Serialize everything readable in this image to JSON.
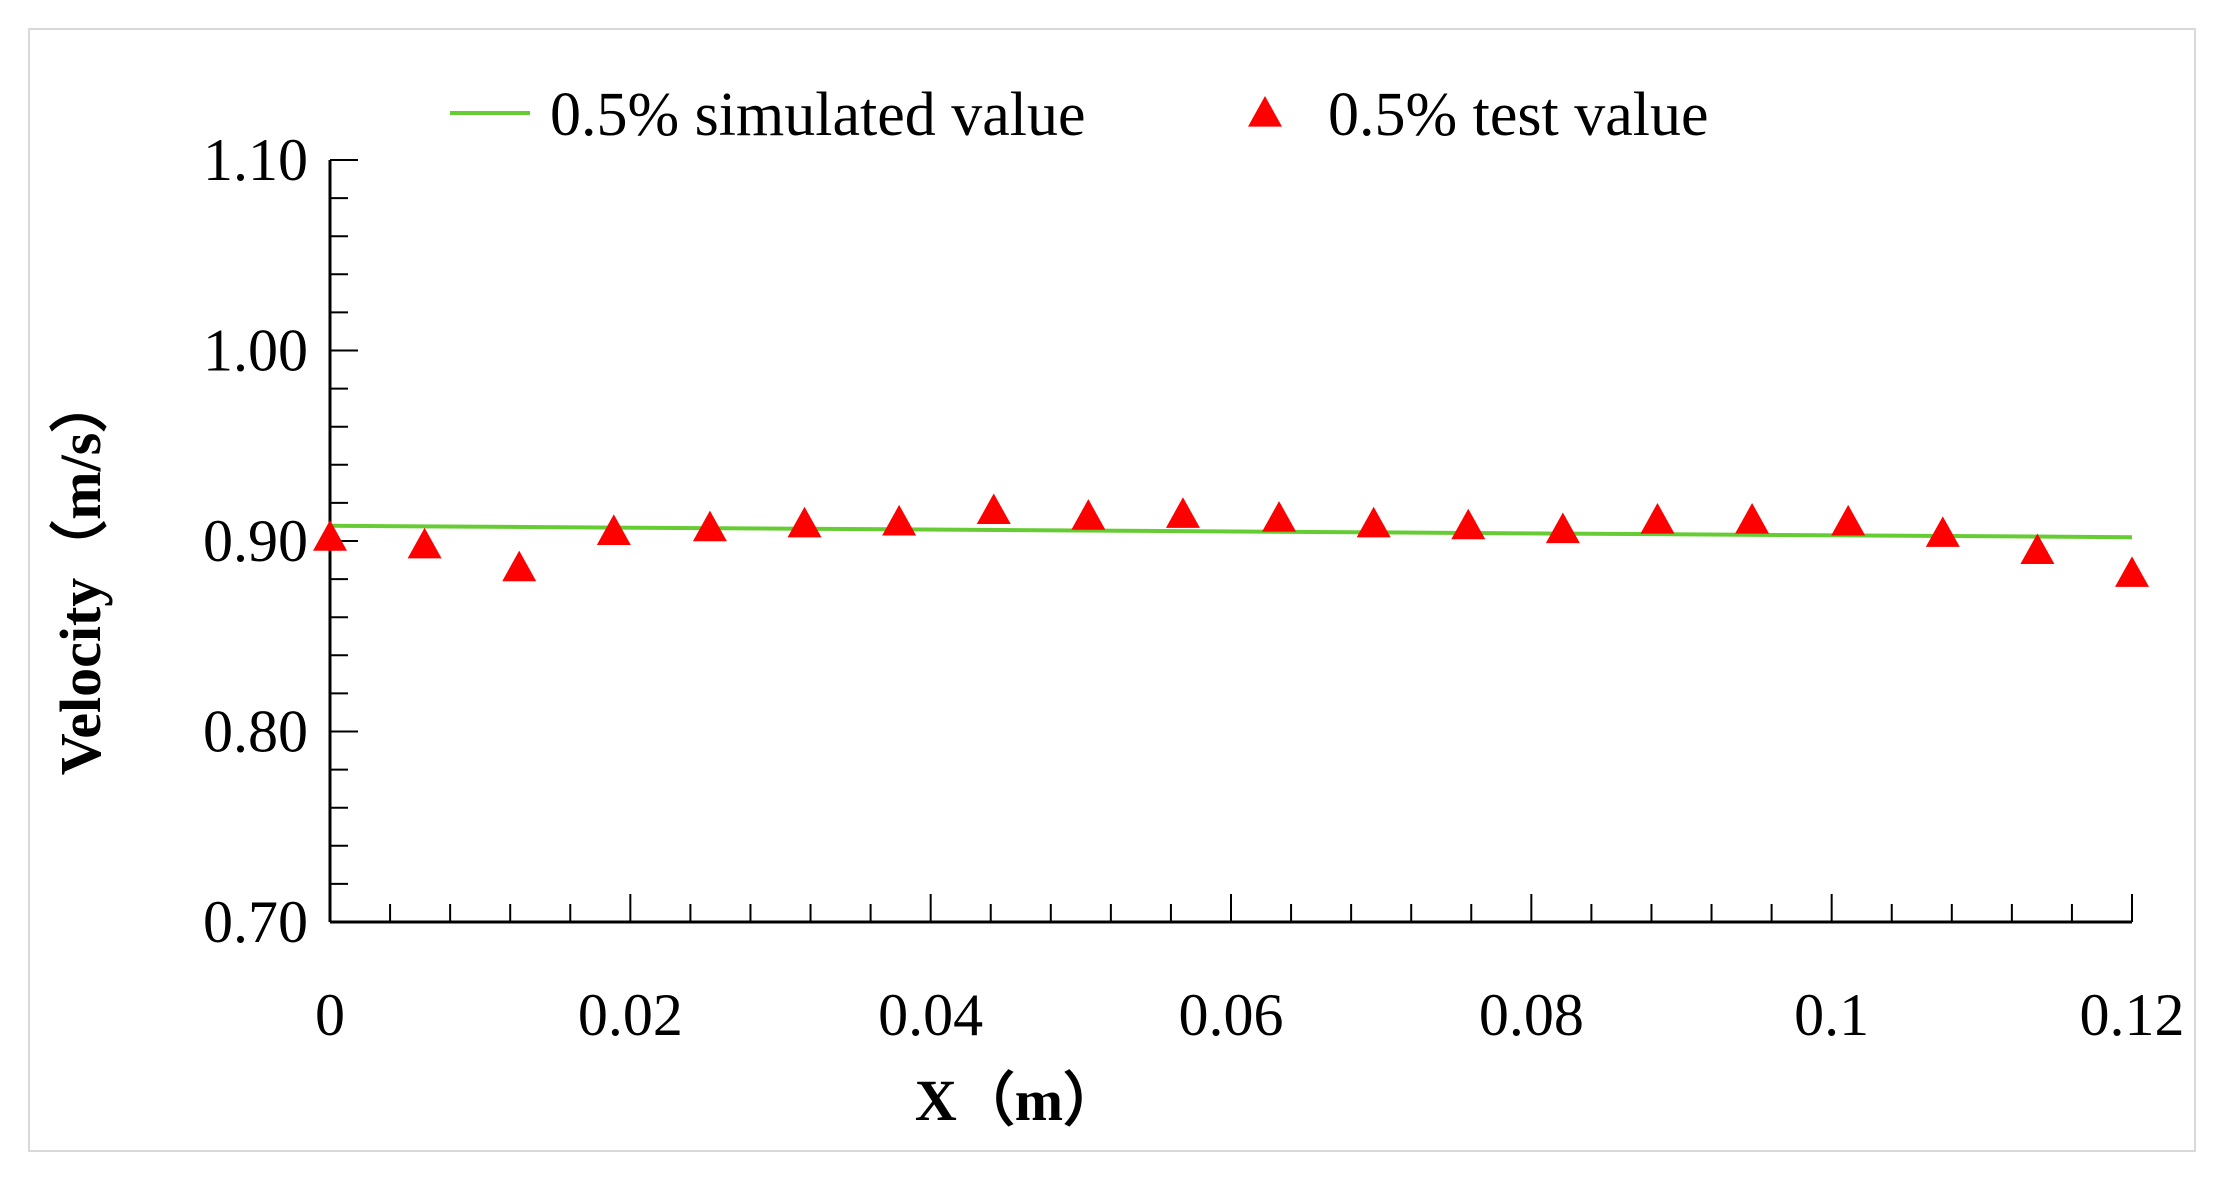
{
  "chart_data": {
    "type": "line",
    "title": "",
    "xlabel": "X（m）",
    "ylabel": "Velocity（m/s）",
    "xlim": [
      0,
      0.12
    ],
    "ylim": [
      0.7,
      1.1
    ],
    "x_ticks": [
      0,
      0.02,
      0.04,
      0.06,
      0.08,
      0.1,
      0.12
    ],
    "x_tick_labels": [
      "0",
      "0.02",
      "0.04",
      "0.06",
      "0.08",
      "0.1",
      "0.12"
    ],
    "y_ticks": [
      0.7,
      0.8,
      0.9,
      1.0,
      1.1
    ],
    "y_tick_labels": [
      "0.70",
      "0.80",
      "0.90",
      "1.00",
      "1.10"
    ],
    "legend_position": "top",
    "series": [
      {
        "name": "0.5% simulated value",
        "kind": "line",
        "color": "#66cc33",
        "x": [
          0,
          0.12
        ],
        "values": [
          0.908,
          0.902
        ]
      },
      {
        "name": "0.5% test value",
        "kind": "scatter",
        "marker": "triangle",
        "color": "#ff0000",
        "x": [
          0,
          0.0063,
          0.0126,
          0.0189,
          0.0253,
          0.0316,
          0.0379,
          0.0442,
          0.0505,
          0.0568,
          0.0632,
          0.0695,
          0.0758,
          0.0821,
          0.0884,
          0.0947,
          0.1011,
          0.1074,
          0.1137,
          0.12
        ],
        "values": [
          0.901,
          0.897,
          0.885,
          0.904,
          0.906,
          0.908,
          0.909,
          0.915,
          0.912,
          0.913,
          0.911,
          0.908,
          0.907,
          0.905,
          0.91,
          0.91,
          0.909,
          0.903,
          0.894,
          0.882
        ]
      }
    ]
  }
}
